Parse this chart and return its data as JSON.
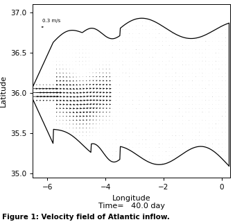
{
  "title": "Figure 1: Velocity field of Atlantic inflow.",
  "xlabel": "Longitude",
  "ylabel": "Latitude",
  "time_label": "Time=   40.0 day",
  "xlim": [
    -6.5,
    0.3
  ],
  "ylim": [
    34.95,
    37.1
  ],
  "xticks": [
    -6,
    -4,
    -2,
    0
  ],
  "yticks": [
    35.0,
    35.5,
    36.0,
    36.5,
    37.0
  ],
  "ref_arrow_label": "0.3 m/s",
  "ref_arrow_u": 0.3,
  "background_color": "#ffffff",
  "arrow_color": "#000000"
}
